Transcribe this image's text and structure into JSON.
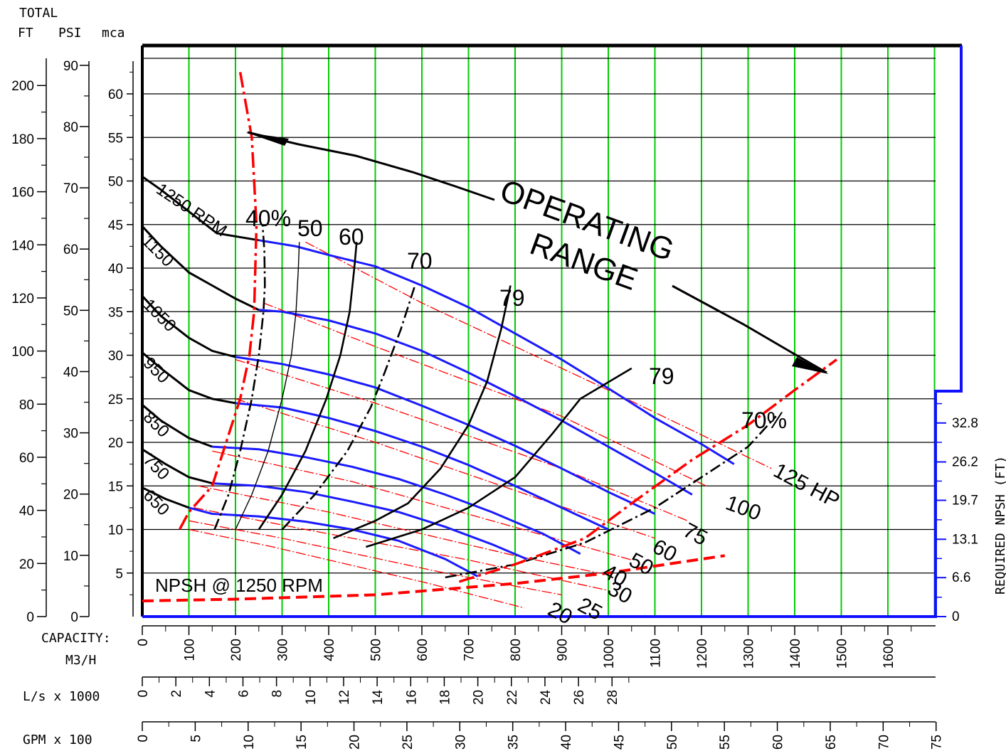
{
  "chart_data": {
    "type": "line",
    "title": "",
    "header": {
      "total": "TOTAL",
      "ft": "FT",
      "psi": "PSI",
      "mca": "mca"
    },
    "capacity_label": "CAPACITY:",
    "capacity_unit": "M3/H",
    "ls_label": "L/s x 1000",
    "gpm_label": "GPM x 100",
    "npsh_axis_label": "REQUIRED NPSH (FT)",
    "npsh_curve_label": "NPSH @ 1250 RPM",
    "operating_range_label": [
      "OPERATING",
      "RANGE"
    ],
    "xlim": [
      0,
      1700
    ],
    "ylim": [
      0,
      63
    ],
    "ft_ticks": [
      "0",
      "20",
      "40",
      "60",
      "80",
      "100",
      "120",
      "140",
      "160",
      "180",
      "200"
    ],
    "psi_ticks": [
      "0",
      "10",
      "20",
      "30",
      "40",
      "50",
      "60",
      "70",
      "80",
      "90"
    ],
    "mca_ticks": [
      "5",
      "10",
      "15",
      "20",
      "25",
      "30",
      "35",
      "40",
      "45",
      "50",
      "55",
      "60"
    ],
    "m3h_ticks": [
      "0",
      "100",
      "200",
      "300",
      "400",
      "500",
      "600",
      "700",
      "800",
      "900",
      "1000",
      "1100",
      "1200",
      "1300",
      "1400",
      "1500",
      "1600"
    ],
    "ls_ticks": [
      "0",
      "2",
      "4",
      "6",
      "8",
      "10",
      "12",
      "14",
      "16",
      "18",
      "20",
      "22",
      "24",
      "26",
      "28"
    ],
    "gpm_ticks": [
      "0",
      "5",
      "10",
      "15",
      "20",
      "25",
      "30",
      "35",
      "40",
      "45",
      "50",
      "55",
      "60",
      "65",
      "70",
      "75"
    ],
    "npsh_ticks": [
      "0",
      "6.6",
      "13.1",
      "19.7",
      "26.2",
      "32.8"
    ],
    "colors": {
      "speed": "#000000",
      "head_blue": "#1a1aff",
      "power": "#ff0000",
      "grid_v": "#00cc00",
      "grid_h": "#000000"
    },
    "speed_curves": [
      {
        "label": "1250 RPM",
        "points": [
          [
            0,
            50.5
          ],
          [
            40,
            49
          ],
          [
            100,
            46.5
          ],
          [
            160,
            44
          ],
          [
            250,
            43.2
          ]
        ]
      },
      {
        "label": "1150",
        "points": [
          [
            0,
            44.8
          ],
          [
            40,
            42.5
          ],
          [
            100,
            39.5
          ],
          [
            150,
            38
          ],
          [
            200,
            36.5
          ],
          [
            250,
            35.2
          ]
        ]
      },
      {
        "label": "1050",
        "points": [
          [
            0,
            36.8
          ],
          [
            40,
            34.5
          ],
          [
            100,
            32
          ],
          [
            150,
            30.5
          ],
          [
            200,
            29.8
          ]
        ]
      },
      {
        "label": "950",
        "points": [
          [
            0,
            30.3
          ],
          [
            40,
            28.5
          ],
          [
            100,
            26
          ],
          [
            150,
            25
          ],
          [
            200,
            24.5
          ]
        ]
      },
      {
        "label": "850",
        "points": [
          [
            0,
            24.3
          ],
          [
            40,
            22.5
          ],
          [
            100,
            20.5
          ],
          [
            150,
            19.5
          ]
        ]
      },
      {
        "label": "750",
        "points": [
          [
            0,
            19.2
          ],
          [
            50,
            17.5
          ],
          [
            100,
            16
          ],
          [
            150,
            15.3
          ]
        ]
      },
      {
        "label": "650",
        "points": [
          [
            0,
            14.8
          ],
          [
            50,
            13.5
          ],
          [
            100,
            12.5
          ]
        ]
      }
    ],
    "head_curves": [
      [
        [
          250,
          43.2
        ],
        [
          330,
          42.5
        ],
        [
          400,
          41.5
        ],
        [
          500,
          40.2
        ],
        [
          600,
          38
        ],
        [
          700,
          35.5
        ],
        [
          800,
          32.5
        ],
        [
          900,
          29.5
        ],
        [
          1000,
          26.2
        ],
        [
          1100,
          22.8
        ],
        [
          1200,
          19.8
        ],
        [
          1270,
          17.5
        ]
      ],
      [
        [
          250,
          35.2
        ],
        [
          300,
          35
        ],
        [
          400,
          34
        ],
        [
          500,
          32.5
        ],
        [
          600,
          30.5
        ],
        [
          700,
          28
        ],
        [
          800,
          25.3
        ],
        [
          900,
          22.5
        ],
        [
          1000,
          19.5
        ],
        [
          1100,
          16.5
        ],
        [
          1180,
          14
        ]
      ],
      [
        [
          200,
          29.8
        ],
        [
          300,
          29
        ],
        [
          400,
          27.8
        ],
        [
          500,
          26.3
        ],
        [
          600,
          24.2
        ],
        [
          700,
          22
        ],
        [
          800,
          19.6
        ],
        [
          900,
          17
        ],
        [
          1000,
          14.3
        ],
        [
          1100,
          11.8
        ]
      ],
      [
        [
          200,
          24.5
        ],
        [
          300,
          24
        ],
        [
          400,
          22.8
        ],
        [
          500,
          21.3
        ],
        [
          600,
          19.5
        ],
        [
          700,
          17.4
        ],
        [
          800,
          15
        ],
        [
          900,
          12.5
        ],
        [
          1000,
          10
        ]
      ],
      [
        [
          150,
          19.5
        ],
        [
          250,
          19.2
        ],
        [
          350,
          18.3
        ],
        [
          450,
          17.2
        ],
        [
          550,
          15.8
        ],
        [
          650,
          14
        ],
        [
          750,
          12
        ],
        [
          860,
          9.5
        ],
        [
          940,
          7.2
        ]
      ],
      [
        [
          150,
          15.3
        ],
        [
          250,
          15
        ],
        [
          350,
          14.3
        ],
        [
          450,
          13.2
        ],
        [
          550,
          12
        ],
        [
          650,
          10.3
        ],
        [
          750,
          8.3
        ],
        [
          825,
          6.6
        ]
      ],
      [
        [
          100,
          12.5
        ],
        [
          150,
          11.8
        ],
        [
          250,
          11.5
        ],
        [
          350,
          10.9
        ],
        [
          450,
          10
        ],
        [
          550,
          8.7
        ],
        [
          650,
          6.6
        ],
        [
          720,
          4.6
        ]
      ]
    ],
    "efficiency_curves": [
      {
        "label": "40%",
        "dash": "dashdot",
        "points": [
          [
            155,
            10
          ],
          [
            185,
            14
          ],
          [
            210,
            19
          ],
          [
            235,
            25
          ],
          [
            250,
            30
          ],
          [
            260,
            35
          ],
          [
            263,
            38
          ],
          [
            262,
            42
          ],
          [
            258,
            45
          ]
        ]
      },
      {
        "label": "50",
        "dash": "thin",
        "points": [
          [
            200,
            10
          ],
          [
            235,
            14
          ],
          [
            270,
            19
          ],
          [
            300,
            25
          ],
          [
            320,
            30
          ],
          [
            330,
            35
          ],
          [
            335,
            40
          ],
          [
            337,
            43
          ]
        ]
      },
      {
        "label": "60",
        "dash": "solid",
        "points": [
          [
            250,
            10
          ],
          [
            300,
            14
          ],
          [
            350,
            19
          ],
          [
            395,
            25
          ],
          [
            425,
            30
          ],
          [
            445,
            35
          ],
          [
            455,
            40
          ],
          [
            460,
            43
          ]
        ]
      },
      {
        "label": "70",
        "dash": "dashdot",
        "points": [
          [
            300,
            10
          ],
          [
            370,
            14
          ],
          [
            440,
            19
          ],
          [
            490,
            24
          ],
          [
            520,
            28
          ],
          [
            555,
            33
          ],
          [
            585,
            38
          ]
        ]
      },
      {
        "label": "79",
        "dash": "solid",
        "points": [
          [
            410,
            9
          ],
          [
            500,
            11
          ],
          [
            570,
            13
          ],
          [
            640,
            17
          ],
          [
            700,
            22
          ],
          [
            740,
            27
          ],
          [
            770,
            33
          ],
          [
            790,
            38
          ]
        ]
      },
      {
        "label": "79",
        "dash": "solid",
        "points": [
          [
            480,
            8
          ],
          [
            600,
            10
          ],
          [
            700,
            12.5
          ],
          [
            800,
            16
          ],
          [
            880,
            21
          ],
          [
            940,
            25
          ],
          [
            1050,
            28.5
          ]
        ]
      },
      {
        "label": "70%",
        "dash": "dashdot",
        "points": [
          [
            650,
            4.5
          ],
          [
            800,
            6
          ],
          [
            950,
            8.5
          ],
          [
            1100,
            12.5
          ],
          [
            1200,
            16
          ],
          [
            1300,
            19.5
          ],
          [
            1360,
            23
          ]
        ]
      }
    ],
    "power_curves": [
      {
        "label": "125 HP",
        "points": [
          [
            350,
            43
          ],
          [
            600,
            36
          ],
          [
            1000,
            26
          ],
          [
            1350,
            17
          ]
        ]
      },
      {
        "label": "100",
        "points": [
          [
            260,
            36
          ],
          [
            500,
            31
          ],
          [
            900,
            23
          ],
          [
            1210,
            15
          ]
        ]
      },
      {
        "label": "75",
        "points": [
          [
            200,
            29.5
          ],
          [
            500,
            24.5
          ],
          [
            900,
            17
          ],
          [
            1170,
            11
          ]
        ]
      },
      {
        "label": "60",
        "points": [
          [
            200,
            25
          ],
          [
            500,
            20
          ],
          [
            880,
            13
          ],
          [
            1100,
            9
          ]
        ]
      },
      {
        "label": "50",
        "points": [
          [
            150,
            19
          ],
          [
            450,
            15.5
          ],
          [
            850,
            9.5
          ],
          [
            1050,
            6.5
          ]
        ]
      },
      {
        "label": "40",
        "points": [
          [
            120,
            15
          ],
          [
            400,
            12
          ],
          [
            800,
            7
          ],
          [
            980,
            5
          ]
        ]
      },
      {
        "label": "30",
        "points": [
          [
            110,
            12.5
          ],
          [
            350,
            10
          ],
          [
            700,
            6.5
          ],
          [
            1000,
            3
          ]
        ]
      },
      {
        "label": "25",
        "points": [
          [
            100,
            11
          ],
          [
            300,
            9
          ],
          [
            650,
            5
          ],
          [
            900,
            2.5
          ]
        ]
      },
      {
        "label": "20",
        "points": [
          [
            100,
            10
          ],
          [
            280,
            8
          ],
          [
            600,
            4
          ],
          [
            820,
            1
          ]
        ]
      }
    ],
    "npsh_curve": [
      [
        0,
        1.8
      ],
      [
        200,
        2
      ],
      [
        500,
        2.5
      ],
      [
        800,
        3.8
      ],
      [
        1000,
        5
      ],
      [
        1150,
        6.2
      ],
      [
        1250,
        7
      ]
    ],
    "min_flow_curve": [
      [
        210,
        62.5
      ],
      [
        235,
        55
      ],
      [
        245,
        45
      ],
      [
        240,
        35
      ],
      [
        230,
        30
      ],
      [
        210,
        25
      ],
      [
        180,
        20
      ],
      [
        150,
        15
      ],
      [
        100,
        12
      ],
      [
        80,
        10
      ]
    ],
    "max_flow_curve": [
      [
        680,
        4
      ],
      [
        800,
        6
      ],
      [
        950,
        9
      ],
      [
        1050,
        13
      ],
      [
        1180,
        18
      ],
      [
        1300,
        22
      ],
      [
        1400,
        26
      ],
      [
        1490,
        29.5
      ]
    ]
  }
}
